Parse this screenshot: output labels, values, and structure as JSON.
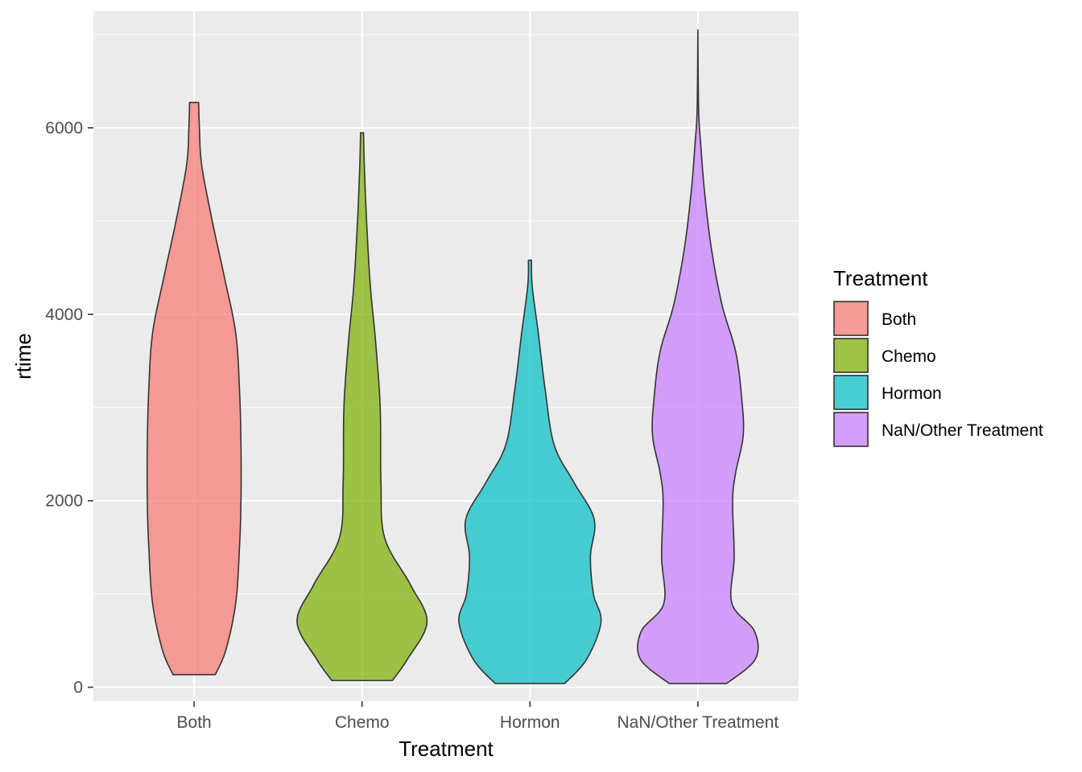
{
  "chart_data": {
    "type": "violin",
    "xlabel": "Treatment",
    "ylabel": "rtime",
    "categories": [
      "Both",
      "Chemo",
      "Hormon",
      "NaN/Other Treatment"
    ],
    "colors": [
      "#F8766D",
      "#7CAE00",
      "#00BFC4",
      "#C77CFF"
    ],
    "ylim": [
      -150,
      7250
    ],
    "yticks": [
      0,
      2000,
      4000,
      6000
    ],
    "grid": true,
    "legend": {
      "title": "Treatment",
      "position": "right"
    },
    "series": [
      {
        "category": "Both",
        "range": [
          135,
          6272
        ],
        "density": [
          [
            135,
            0.28
          ],
          [
            400,
            0.42
          ],
          [
            900,
            0.55
          ],
          [
            1500,
            0.6
          ],
          [
            2000,
            0.62
          ],
          [
            2600,
            0.62
          ],
          [
            3200,
            0.6
          ],
          [
            3800,
            0.55
          ],
          [
            4400,
            0.4
          ],
          [
            5000,
            0.24
          ],
          [
            5600,
            0.1
          ],
          [
            6000,
            0.07
          ],
          [
            6272,
            0.06
          ]
        ]
      },
      {
        "category": "Chemo",
        "range": [
          72,
          5946
        ],
        "density": [
          [
            72,
            0.4
          ],
          [
            300,
            0.6
          ],
          [
            700,
            0.86
          ],
          [
            1100,
            0.64
          ],
          [
            1600,
            0.3
          ],
          [
            2200,
            0.25
          ],
          [
            3000,
            0.24
          ],
          [
            3700,
            0.18
          ],
          [
            4300,
            0.11
          ],
          [
            5000,
            0.06
          ],
          [
            5600,
            0.03
          ],
          [
            5946,
            0.02
          ]
        ]
      },
      {
        "category": "Hormon",
        "range": [
          40,
          4580
        ],
        "density": [
          [
            40,
            0.46
          ],
          [
            300,
            0.75
          ],
          [
            700,
            0.94
          ],
          [
            1000,
            0.84
          ],
          [
            1400,
            0.8
          ],
          [
            1800,
            0.85
          ],
          [
            2200,
            0.58
          ],
          [
            2600,
            0.32
          ],
          [
            3200,
            0.2
          ],
          [
            3800,
            0.11
          ],
          [
            4300,
            0.03
          ],
          [
            4580,
            0.02
          ]
        ]
      },
      {
        "category": "NaN/Other Treatment",
        "range": [
          40,
          7050
        ],
        "density": [
          [
            40,
            0.38
          ],
          [
            300,
            0.76
          ],
          [
            600,
            0.75
          ],
          [
            900,
            0.45
          ],
          [
            1400,
            0.48
          ],
          [
            2000,
            0.46
          ],
          [
            2300,
            0.5
          ],
          [
            2700,
            0.6
          ],
          [
            3100,
            0.58
          ],
          [
            3600,
            0.5
          ],
          [
            4100,
            0.32
          ],
          [
            4700,
            0.18
          ],
          [
            5300,
            0.09
          ],
          [
            5800,
            0.04
          ],
          [
            6200,
            0.01
          ],
          [
            7050,
            0.0
          ]
        ]
      }
    ]
  }
}
